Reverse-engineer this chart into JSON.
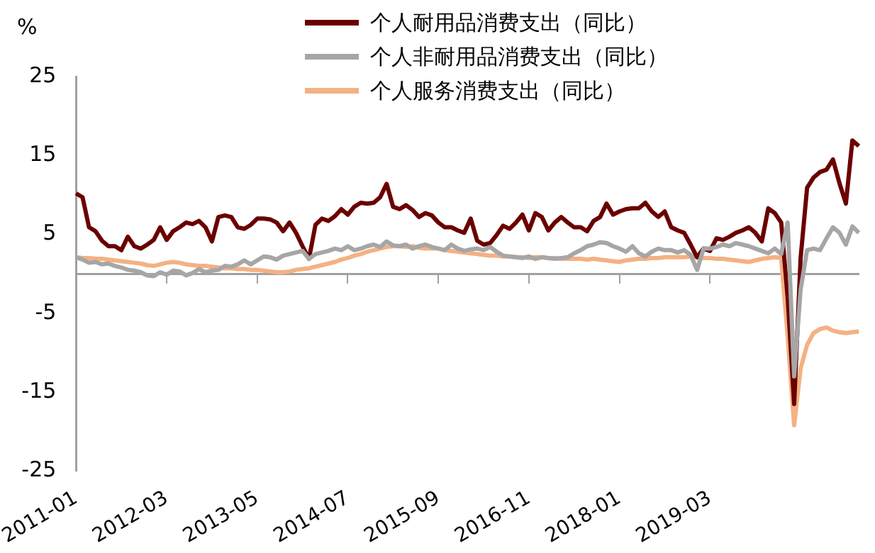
{
  "chart_data": {
    "type": "line",
    "ylabel": "%",
    "categories": [
      "2011-01",
      null,
      null,
      null,
      null,
      null,
      null,
      null,
      null,
      null,
      null,
      null,
      null,
      null,
      "2012-03",
      null,
      null,
      null,
      null,
      null,
      null,
      null,
      null,
      null,
      null,
      null,
      null,
      null,
      "2013-05",
      null,
      null,
      null,
      null,
      null,
      null,
      null,
      null,
      null,
      null,
      null,
      null,
      null,
      "2014-07",
      null,
      null,
      null,
      null,
      null,
      null,
      null,
      null,
      null,
      null,
      null,
      null,
      null,
      "2015-09",
      null,
      null,
      null,
      null,
      null,
      null,
      null,
      null,
      null,
      null,
      null,
      null,
      null,
      "2016-11",
      null,
      null,
      null,
      null,
      null,
      null,
      null,
      null,
      null,
      null,
      null,
      null,
      null,
      "2018-01",
      null,
      null,
      null,
      null,
      null,
      null,
      null,
      null,
      null,
      null,
      null,
      null,
      null,
      "2019-03",
      null,
      null,
      null,
      null,
      null,
      null,
      null,
      null,
      null,
      null,
      null,
      null,
      null,
      null,
      null,
      null,
      null,
      null,
      null,
      null,
      null,
      null,
      null
    ],
    "series": [
      {
        "name": "个人耐用品消费支出（同比）",
        "color": "#6b0000",
        "values": [
          10.2,
          9.7,
          5.9,
          5.4,
          4.2,
          3.5,
          3.5,
          3.0,
          4.7,
          3.5,
          3.2,
          3.7,
          4.3,
          5.9,
          4.3,
          5.4,
          5.9,
          6.5,
          6.3,
          6.7,
          5.9,
          4.1,
          7.2,
          7.4,
          7.2,
          5.9,
          5.7,
          6.2,
          7.0,
          7.0,
          6.9,
          6.5,
          5.4,
          6.5,
          5.2,
          3.5,
          1.9,
          6.2,
          7.0,
          6.7,
          7.3,
          8.2,
          7.5,
          8.5,
          9.0,
          8.9,
          9.0,
          9.7,
          11.4,
          8.5,
          8.2,
          8.7,
          8.1,
          7.2,
          7.7,
          7.4,
          6.5,
          5.9,
          5.9,
          5.5,
          5.2,
          7.0,
          4.2,
          3.7,
          3.9,
          4.9,
          6.1,
          5.7,
          6.5,
          7.5,
          5.5,
          7.7,
          7.2,
          5.5,
          6.5,
          7.2,
          6.5,
          5.9,
          5.9,
          5.4,
          6.7,
          7.2,
          8.9,
          7.5,
          7.9,
          8.2,
          8.3,
          8.3,
          9.0,
          7.9,
          7.2,
          7.9,
          5.9,
          5.5,
          5.2,
          3.7,
          2.1,
          3.2,
          2.9,
          4.5,
          4.3,
          4.7,
          5.2,
          5.5,
          5.9,
          5.2,
          4.1,
          8.3,
          7.7,
          6.5,
          -3,
          -16.5,
          2,
          10.9,
          12.2,
          12.9,
          13.2,
          14.5,
          11.5,
          8.9,
          16.9,
          16.2
        ]
      },
      {
        "name": "个人非耐用品消费支出（同比）",
        "color": "#a6a6a6",
        "values": [
          2.1,
          1.8,
          1.4,
          1.5,
          1.2,
          1.3,
          1.0,
          0.8,
          0.5,
          0.4,
          0.2,
          -0.2,
          -0.3,
          0.2,
          -0.1,
          0.4,
          0.3,
          -0.2,
          0.1,
          0.6,
          0.2,
          0.4,
          0.5,
          1.0,
          0.9,
          1.2,
          1.7,
          1.2,
          1.7,
          2.2,
          2.1,
          1.8,
          2.3,
          2.5,
          2.7,
          2.9,
          1.9,
          2.5,
          2.7,
          2.9,
          3.2,
          3.0,
          3.5,
          3.0,
          3.2,
          3.5,
          3.7,
          3.4,
          4.1,
          3.6,
          3.5,
          3.7,
          3.2,
          3.5,
          3.7,
          3.4,
          3.2,
          3.0,
          3.7,
          3.2,
          2.9,
          3.1,
          3.2,
          3.0,
          3.4,
          2.8,
          2.3,
          2.2,
          2.1,
          2.0,
          2.2,
          1.9,
          2.1,
          2.0,
          1.9,
          2.0,
          2.1,
          2.6,
          3.0,
          3.5,
          3.7,
          4.0,
          3.9,
          3.5,
          3.2,
          2.8,
          3.5,
          2.6,
          2.2,
          2.8,
          3.2,
          3.0,
          3.0,
          2.7,
          3.0,
          2.4,
          0.5,
          3.2,
          3.2,
          3.4,
          3.7,
          3.5,
          3.9,
          3.7,
          3.5,
          3.2,
          2.9,
          2.6,
          3.2,
          2.5,
          6.5,
          -13,
          -2,
          3.0,
          3.2,
          3.0,
          4.5,
          5.9,
          5.2,
          3.7,
          6.0,
          5.2
        ]
      },
      {
        "name": "个人服务消费支出（同比）",
        "color": "#f4b183",
        "values": [
          2.1,
          2.0,
          2.0,
          1.9,
          1.9,
          1.8,
          1.7,
          1.6,
          1.5,
          1.4,
          1.3,
          1.1,
          1.0,
          1.2,
          1.4,
          1.5,
          1.4,
          1.2,
          1.1,
          1.0,
          1.0,
          0.9,
          0.8,
          0.7,
          0.7,
          0.6,
          0.6,
          0.5,
          0.5,
          0.4,
          0.3,
          0.2,
          0.2,
          0.3,
          0.5,
          0.6,
          0.7,
          0.9,
          1.1,
          1.3,
          1.5,
          1.8,
          2.0,
          2.3,
          2.5,
          2.8,
          3.0,
          3.2,
          3.4,
          3.5,
          3.5,
          3.4,
          3.5,
          3.3,
          3.2,
          3.2,
          3.2,
          3.0,
          2.9,
          2.8,
          2.7,
          2.6,
          2.5,
          2.4,
          2.3,
          2.3,
          2.2,
          2.2,
          2.1,
          2.1,
          2.0,
          2.1,
          2.1,
          2.0,
          2.0,
          1.9,
          1.9,
          1.9,
          1.9,
          1.8,
          1.9,
          1.8,
          1.7,
          1.6,
          1.5,
          1.7,
          1.8,
          1.9,
          1.9,
          2.0,
          2.0,
          2.1,
          2.1,
          2.1,
          2.1,
          2.2,
          2.1,
          2.0,
          2.0,
          1.9,
          1.9,
          1.8,
          1.7,
          1.6,
          1.5,
          1.7,
          1.9,
          2.0,
          2.1,
          2.0,
          -8,
          -19.2,
          -12,
          -9,
          -7.5,
          -7,
          -6.8,
          -7.2,
          -7.4,
          -7.5,
          -7.4,
          -7.3
        ]
      }
    ],
    "ylim": [
      -25,
      25
    ],
    "yticks": [
      -25,
      -15,
      -5,
      5,
      15,
      25
    ],
    "grid": false,
    "legend": "top",
    "marker": "none",
    "line_style": "solid"
  }
}
